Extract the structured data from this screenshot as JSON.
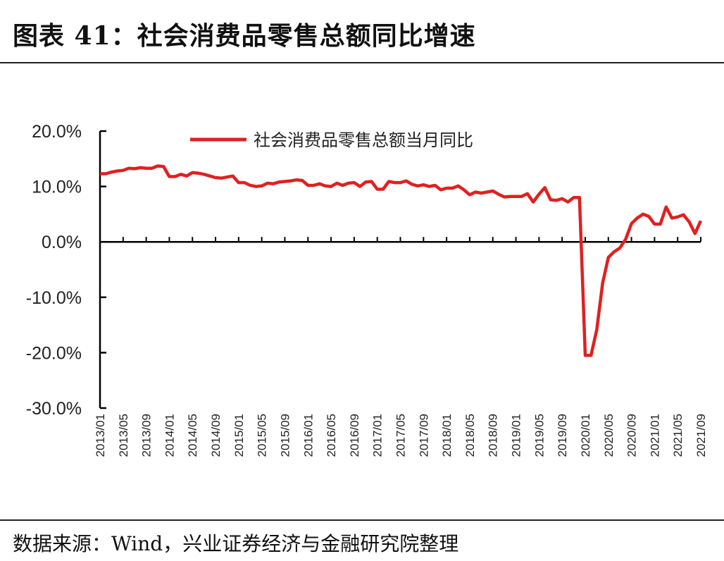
{
  "title": "图表 41：社会消费品零售总额同比增速",
  "source": "数据来源：Wind，兴业证券经济与金融研究院整理",
  "chart_data": {
    "type": "line",
    "title": "图表 41：社会消费品零售总额同比增速",
    "xlabel": "",
    "ylabel": "",
    "ylim": [
      -30,
      20
    ],
    "yticks": [
      "20.0%",
      "10.0%",
      "0.0%",
      "-10.0%",
      "-20.0%",
      "-30.0%"
    ],
    "ytick_values": [
      20,
      10,
      0,
      -10,
      -20,
      -30
    ],
    "xtick_labels": [
      "2013/01",
      "2013/05",
      "2013/09",
      "2014/01",
      "2014/05",
      "2014/09",
      "2015/01",
      "2015/05",
      "2015/09",
      "2016/01",
      "2016/05",
      "2016/09",
      "2017/01",
      "2017/05",
      "2017/09",
      "2018/01",
      "2018/05",
      "2018/09",
      "2019/01",
      "2019/05",
      "2019/09",
      "2020/01",
      "2020/05",
      "2020/09",
      "2021/01",
      "2021/05",
      "2021/09"
    ],
    "x_start": "2013/01",
    "x_end": "2021/09",
    "grid": false,
    "legend_position": "top",
    "color": "#e02020",
    "series": [
      {
        "name": "社会消费品零售总额当月同比",
        "values": [
          12.3,
          12.3,
          12.6,
          12.8,
          12.9,
          13.3,
          13.2,
          13.4,
          13.3,
          13.3,
          13.7,
          13.6,
          11.8,
          11.8,
          12.2,
          11.9,
          12.5,
          12.4,
          12.2,
          11.9,
          11.6,
          11.5,
          11.7,
          11.9,
          10.7,
          10.7,
          10.2,
          10.0,
          10.1,
          10.6,
          10.5,
          10.8,
          10.9,
          11.0,
          11.2,
          11.1,
          10.2,
          10.2,
          10.5,
          10.1,
          10.0,
          10.6,
          10.2,
          10.6,
          10.7,
          10.0,
          10.8,
          10.9,
          9.5,
          9.5,
          10.9,
          10.7,
          10.7,
          11.0,
          10.4,
          10.1,
          10.3,
          10.0,
          10.2,
          9.4,
          9.7,
          9.7,
          10.1,
          9.4,
          8.5,
          9.0,
          8.8,
          9.0,
          9.2,
          8.6,
          8.1,
          8.2,
          8.2,
          8.2,
          8.7,
          7.2,
          8.6,
          9.8,
          7.6,
          7.5,
          7.8,
          7.2,
          8.0,
          8.0,
          -20.5,
          -20.5,
          -15.8,
          -7.5,
          -2.8,
          -1.8,
          -1.1,
          0.5,
          3.3,
          4.3,
          5.0,
          4.6,
          3.2,
          3.2,
          6.3,
          4.3,
          4.5,
          4.9,
          3.6,
          1.5,
          3.8
        ]
      }
    ]
  }
}
